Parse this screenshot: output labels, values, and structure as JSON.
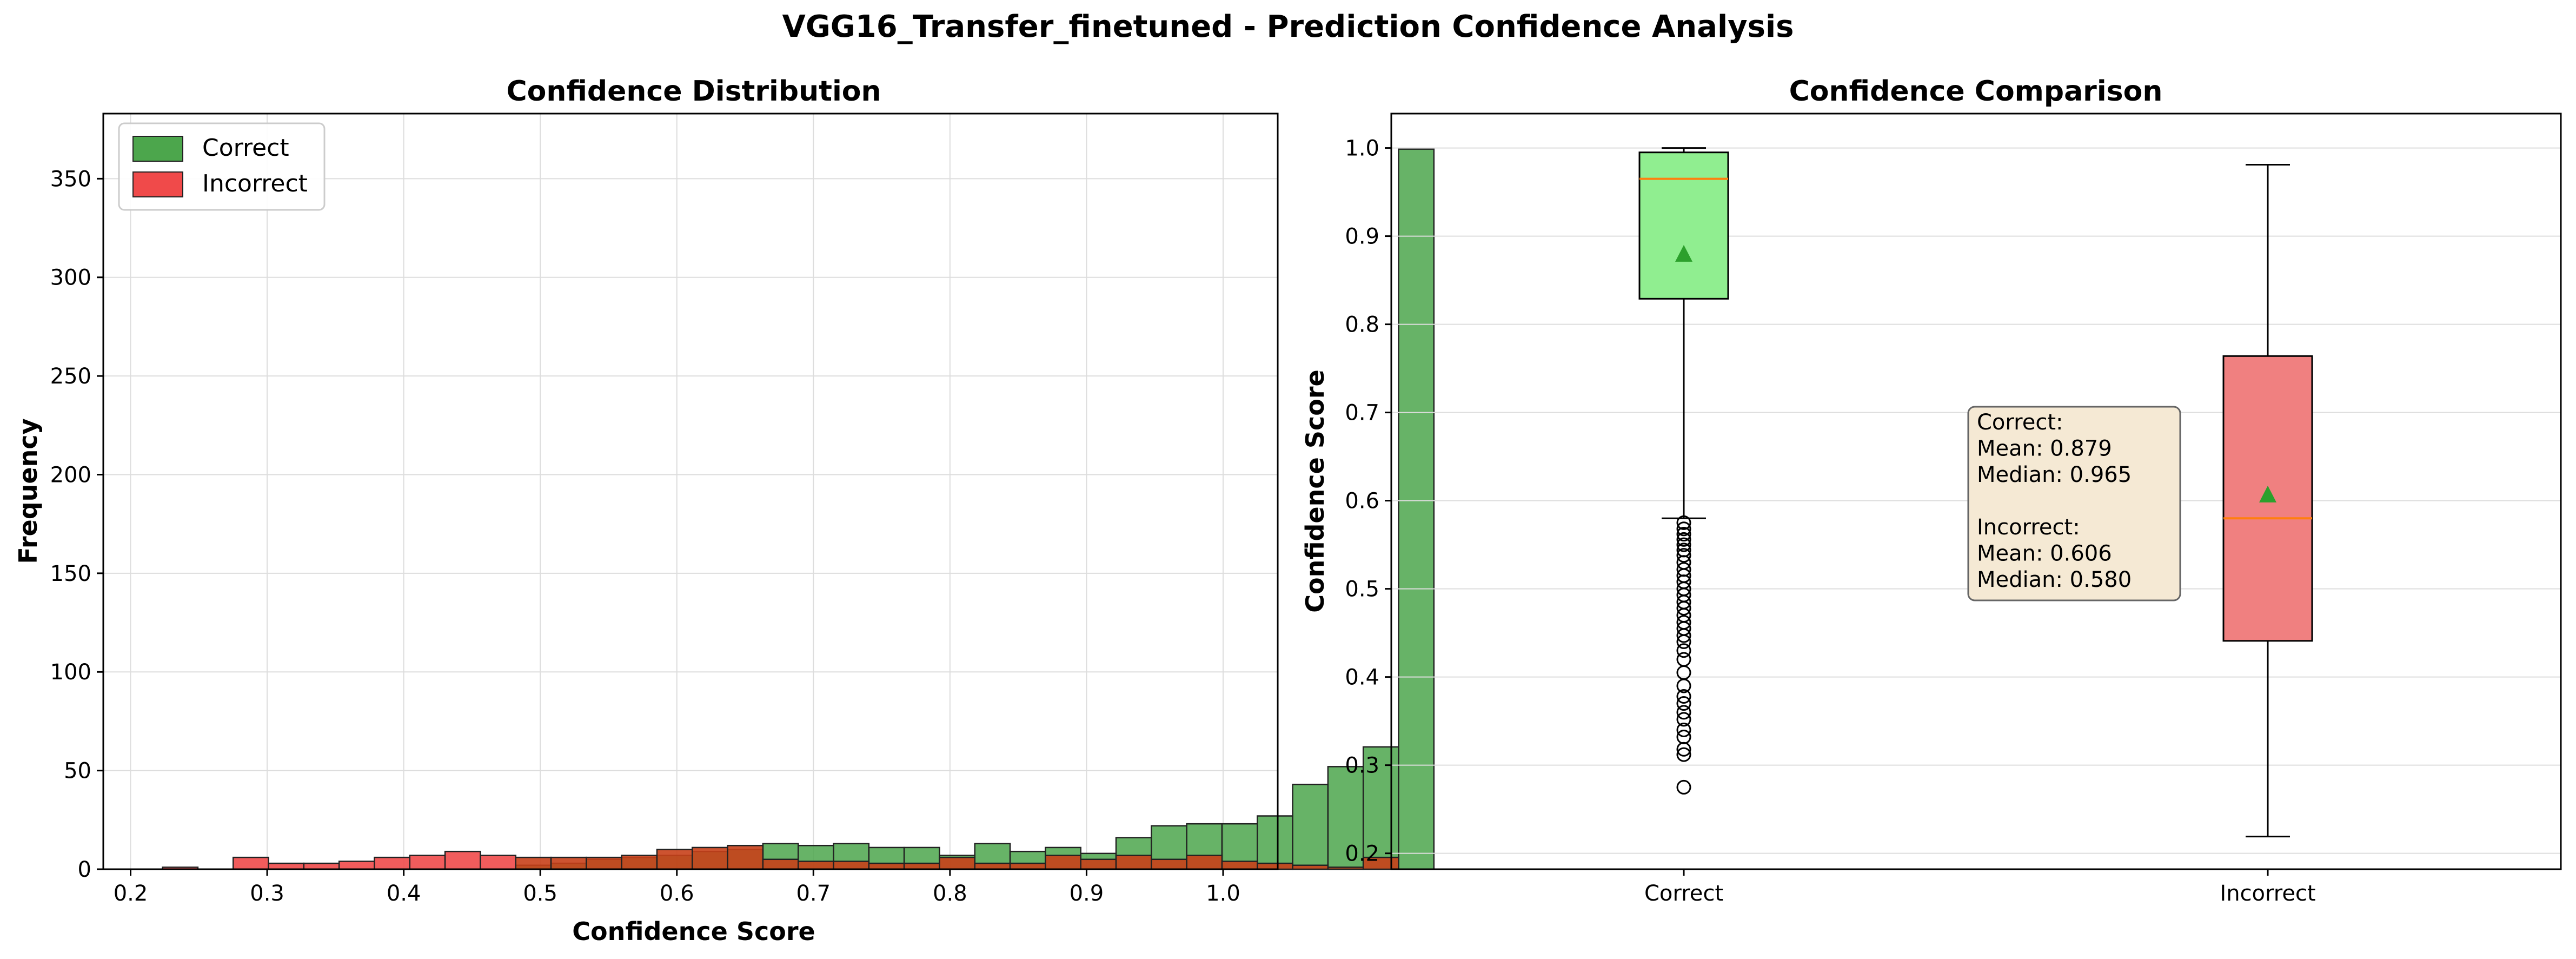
{
  "figure": {
    "title": "VGG16_Transfer_finetuned - Prediction Confidence Analysis"
  },
  "colors": {
    "correct_bar": "#4ca64c",
    "incorrect_bar": "#f04a4a",
    "overlap_bar": "#c8401a",
    "correct_box": "#90ee90",
    "incorrect_box": "#f08080",
    "median_line": "#ff7f0e",
    "mean_marker": "#2ca02c",
    "stats_box_fill": "#f5e9d4",
    "grid": "#dddddd"
  },
  "chart_data": [
    {
      "type": "histogram",
      "title": "Confidence Distribution",
      "xlabel": "Confidence Score",
      "ylabel": "Frequency",
      "xlim": [
        0.18,
        1.04
      ],
      "ylim": [
        0,
        383
      ],
      "xticks": [
        "0.2",
        "0.3",
        "0.4",
        "0.5",
        "0.6",
        "0.7",
        "0.8",
        "0.9",
        "1.0"
      ],
      "yticks": [
        "0",
        "50",
        "100",
        "150",
        "200",
        "250",
        "300",
        "350"
      ],
      "grid": true,
      "legend_position": "top-left",
      "series": [
        {
          "name": "Correct",
          "bin_start": 0.2234,
          "bin_width": 0.02586,
          "values": [
            0,
            0,
            0,
            0,
            0,
            0,
            0,
            0,
            0,
            0,
            2,
            3,
            5,
            6,
            7,
            9,
            10,
            13,
            12,
            13,
            11,
            11,
            7,
            13,
            9,
            11,
            8,
            16,
            22,
            23,
            23,
            27,
            43,
            52,
            62,
            365
          ]
        },
        {
          "name": "Incorrect",
          "bin_start": 0.2234,
          "bin_width": 0.02586,
          "values": [
            1,
            0,
            6,
            3,
            3,
            4,
            6,
            7,
            9,
            7,
            6,
            6,
            6,
            7,
            10,
            11,
            12,
            5,
            4,
            4,
            3,
            3,
            6,
            3,
            3,
            7,
            5,
            7,
            5,
            7,
            4,
            3,
            2,
            1,
            6,
            0
          ]
        }
      ]
    },
    {
      "type": "box",
      "title": "Confidence Comparison",
      "ylabel": "Confidence Score",
      "ylim": [
        0.182,
        1.039
      ],
      "categories": [
        "Correct",
        "Incorrect"
      ],
      "yticks": [
        "0.2",
        "0.3",
        "0.4",
        "0.5",
        "0.6",
        "0.7",
        "0.8",
        "0.9",
        "1.0"
      ],
      "grid": true,
      "boxes": [
        {
          "q1": 0.829,
          "median": 0.965,
          "q3": 0.995,
          "mean": 0.879,
          "whisker_low": 0.58,
          "whisker_high": 1.0,
          "outliers": [
            0.575,
            0.568,
            0.562,
            0.556,
            0.55,
            0.544,
            0.538,
            0.53,
            0.522,
            0.515,
            0.508,
            0.5,
            0.493,
            0.485,
            0.478,
            0.47,
            0.462,
            0.455,
            0.447,
            0.44,
            0.43,
            0.42,
            0.405,
            0.39,
            0.378,
            0.37,
            0.36,
            0.352,
            0.34,
            0.332,
            0.318,
            0.312,
            0.275
          ]
        },
        {
          "q1": 0.441,
          "median": 0.58,
          "q3": 0.764,
          "mean": 0.606,
          "whisker_low": 0.219,
          "whisker_high": 0.981,
          "outliers": []
        }
      ],
      "annotation": [
        "Correct:",
        "Mean: 0.879",
        "Median: 0.965",
        "",
        "Incorrect:",
        "Mean: 0.606",
        "Median: 0.580"
      ]
    }
  ]
}
